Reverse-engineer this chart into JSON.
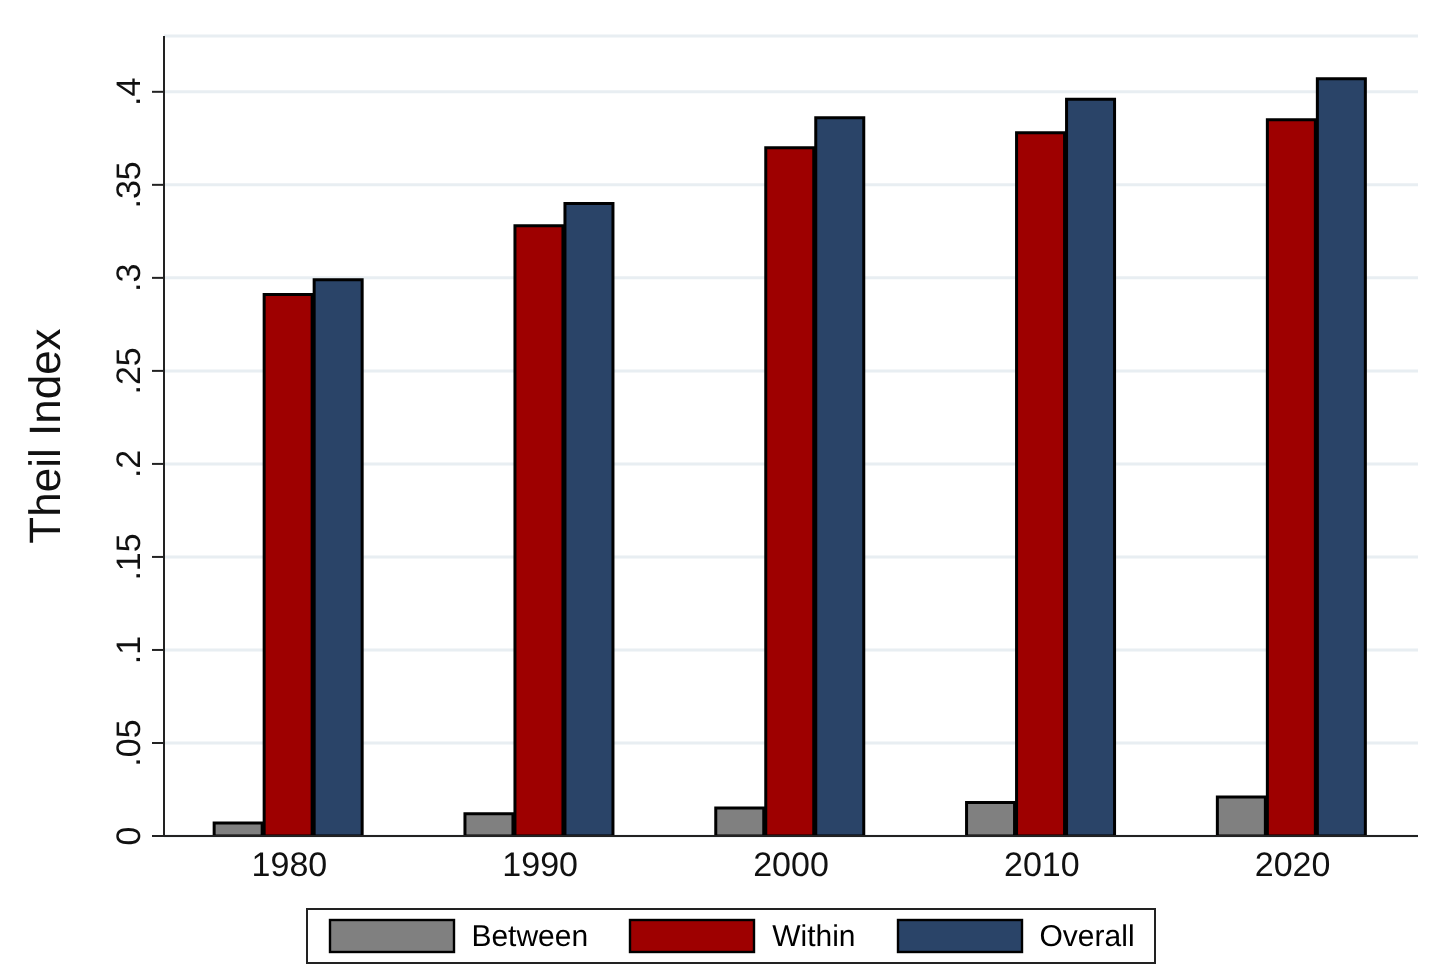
{
  "chart_data": {
    "type": "bar",
    "ylabel": "Theil Index",
    "categories": [
      "1980",
      "1990",
      "2000",
      "2010",
      "2020"
    ],
    "series": [
      {
        "name": "Between",
        "color": "#808080",
        "values": [
          0.007,
          0.012,
          0.015,
          0.018,
          0.021
        ]
      },
      {
        "name": "Within",
        "color": "#9e0000",
        "values": [
          0.291,
          0.328,
          0.37,
          0.378,
          0.385
        ]
      },
      {
        "name": "Overall",
        "color": "#2a4468",
        "values": [
          0.299,
          0.34,
          0.386,
          0.396,
          0.407
        ]
      }
    ],
    "ylim": [
      0,
      0.43
    ],
    "yticks": [
      0,
      {
        "value": 0.05,
        "label": ".05"
      },
      {
        "value": 0.1,
        "label": ".1"
      },
      {
        "value": 0.15,
        "label": ".15"
      },
      {
        "value": 0.2,
        "label": ".2"
      },
      {
        "value": 0.25,
        "label": ".25"
      },
      {
        "value": 0.3,
        "label": ".3"
      },
      {
        "value": 0.35,
        "label": ".35"
      },
      {
        "value": 0.4,
        "label": ".4"
      }
    ],
    "grid": "y",
    "legend": "bottom"
  }
}
